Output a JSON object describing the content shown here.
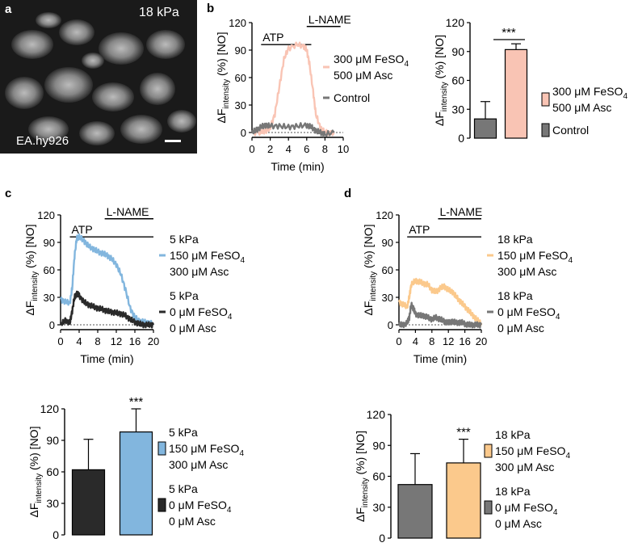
{
  "figure": {
    "panel_labels": [
      "a",
      "b",
      "c",
      "d"
    ],
    "micrograph": {
      "stiffness_label": "18 kPa",
      "cell_line_label": "EA.hy926",
      "description_icon": "scale-bar"
    }
  },
  "colors": {
    "control": "#777777",
    "salmon": "#f9c4b4",
    "blue": "#82b6de",
    "dark": "#2a2a2a",
    "orange": "#fbc98c"
  },
  "chart_data": [
    {
      "id": "b-trace",
      "type": "line",
      "ylabel_main": "ΔF",
      "ylabel_sub": "intensity",
      "ylabel_tail": "(%) [NO]",
      "xlabel": "Time (min)",
      "ylim": [
        0,
        120
      ],
      "yticks": [
        "0",
        "30",
        "60",
        "90",
        "120"
      ],
      "xlim": [
        0,
        10
      ],
      "xticks": [
        "0",
        "2",
        "4",
        "6",
        "8",
        "10"
      ],
      "annotations": {
        "atp": "ATP",
        "lname": "L-NAME"
      },
      "atp_range": [
        1.0,
        6.5
      ],
      "lname_range": [
        6.0,
        9.7
      ],
      "series": [
        {
          "name": "300 μM FeSO4 / 500 μM Asc",
          "color_key": "salmon",
          "x": [
            0,
            1,
            1.5,
            2,
            2.5,
            3,
            3.5,
            4,
            5,
            5.7,
            6,
            6.3,
            6.7,
            7,
            7.5,
            8,
            9
          ],
          "values": [
            0,
            0,
            2,
            5,
            20,
            50,
            80,
            92,
            96,
            94,
            90,
            75,
            45,
            20,
            5,
            0,
            0
          ]
        },
        {
          "name": "Control",
          "color_key": "control",
          "x": [
            0,
            0.5,
            1,
            1.5,
            2,
            3,
            4,
            5,
            6,
            6.5,
            7,
            7.5,
            8,
            9
          ],
          "values": [
            0,
            3,
            6,
            8,
            7,
            7,
            6,
            7,
            8,
            6,
            2,
            0,
            -2,
            0
          ]
        }
      ],
      "legend": [
        {
          "color_key": "salmon",
          "lines": [
            "300 μM FeSO",
            "4",
            "500 μM Asc"
          ]
        },
        {
          "color_key": "control",
          "lines": [
            "Control"
          ]
        }
      ]
    },
    {
      "id": "b-bar",
      "type": "bar",
      "ylabel_main": "ΔF",
      "ylabel_sub": "intensity",
      "ylabel_tail": "(%) [NO]",
      "ylim": [
        0,
        120
      ],
      "yticks": [
        "0",
        "30",
        "60",
        "90",
        "120"
      ],
      "categories": [
        "Control",
        "300 μM FeSO4 / 500 μM Asc"
      ],
      "values": [
        20,
        92
      ],
      "errors": [
        18,
        6
      ],
      "color_keys": [
        "control",
        "salmon"
      ],
      "significance": "***",
      "legend": [
        {
          "color_key": "salmon",
          "lines": [
            "300 μM FeSO",
            "4",
            "500 μM Asc"
          ]
        },
        {
          "color_key": "control",
          "lines": [
            "Control"
          ]
        }
      ]
    },
    {
      "id": "c-trace",
      "type": "line",
      "ylabel_main": "ΔF",
      "ylabel_sub": "intensity",
      "ylabel_tail": "(%) [NO]",
      "xlabel": "Time (min)",
      "ylim": [
        0,
        120
      ],
      "yticks": [
        "0",
        "30",
        "60",
        "90",
        "120"
      ],
      "xlim": [
        0,
        20
      ],
      "xticks": [
        "0",
        "4",
        "8",
        "12",
        "16",
        "20"
      ],
      "annotations": {
        "atp": "ATP",
        "lname": "L-NAME"
      },
      "atp_range": [
        2.0,
        20.0
      ],
      "lname_range": [
        9.5,
        20.0
      ],
      "series": [
        {
          "name": "5 kPa 150 μM FeSO4 300 μM Asc",
          "color_key": "blue",
          "x": [
            0,
            1,
            2,
            2.5,
            3,
            3.5,
            4,
            5,
            6,
            7,
            8,
            9,
            10,
            11,
            12,
            13,
            14,
            15,
            16,
            17,
            18,
            19,
            20
          ],
          "values": [
            28,
            25,
            24,
            40,
            75,
            95,
            96,
            92,
            86,
            83,
            80,
            78,
            76,
            72,
            66,
            55,
            38,
            18,
            8,
            4,
            3,
            2,
            1
          ]
        },
        {
          "name": "5 kPa 0 μM FeSO4 0 μM Asc",
          "color_key": "dark",
          "x": [
            0,
            1,
            2,
            2.5,
            3,
            3.5,
            4,
            5,
            6,
            7,
            8,
            9,
            10,
            11,
            12,
            13,
            14,
            15,
            16,
            17,
            18,
            19,
            20
          ],
          "values": [
            0,
            5,
            2,
            15,
            30,
            34,
            32,
            25,
            22,
            20,
            18,
            17,
            15,
            14,
            13,
            12,
            10,
            6,
            3,
            1,
            0,
            0,
            0
          ]
        }
      ],
      "legend": [
        {
          "color_key": "blue",
          "lines": [
            "5 kPa",
            "150 μM FeSO",
            "4",
            "300 μM Asc"
          ]
        },
        {
          "color_key": "dark",
          "lines": [
            "5 kPa",
            "0 μM FeSO",
            "4",
            "0 μM Asc"
          ]
        }
      ]
    },
    {
      "id": "c-bar",
      "type": "bar",
      "ylabel_main": "ΔF",
      "ylabel_sub": "intensity",
      "ylabel_tail": "(%) [NO]",
      "ylim": [
        0,
        120
      ],
      "yticks": [
        "0",
        "30",
        "60",
        "90",
        "120"
      ],
      "categories": [
        "5 kPa 0 μM FeSO4 0 μM Asc",
        "5 kPa 150 μM FeSO4 300 μM Asc"
      ],
      "values": [
        62,
        98
      ],
      "errors": [
        29,
        22
      ],
      "color_keys": [
        "dark",
        "blue"
      ],
      "significance": "***",
      "legend": [
        {
          "color_key": "blue",
          "lines": [
            "5 kPa",
            "150 μM FeSO",
            "4",
            "300 μM Asc"
          ]
        },
        {
          "color_key": "dark",
          "lines": [
            "5 kPa",
            "0 μM FeSO",
            "4",
            "0 μM Asc"
          ]
        }
      ]
    },
    {
      "id": "d-trace",
      "type": "line",
      "ylabel_main": "ΔF",
      "ylabel_sub": "intensity",
      "ylabel_tail": "(%) [NO]",
      "xlabel": "Time (min)",
      "ylim": [
        0,
        120
      ],
      "yticks": [
        "0",
        "30",
        "60",
        "90",
        "120"
      ],
      "xlim": [
        0,
        20
      ],
      "xticks": [
        "0",
        "4",
        "8",
        "12",
        "16",
        "20"
      ],
      "annotations": {
        "atp": "ATP",
        "lname": "L-NAME"
      },
      "atp_range": [
        2.0,
        20.0
      ],
      "lname_range": [
        9.5,
        20.0
      ],
      "series": [
        {
          "name": "18 kPa 150 μM FeSO4 300 μM Asc",
          "color_key": "orange",
          "x": [
            0,
            1,
            2,
            2.5,
            3,
            4,
            5,
            6,
            7,
            8,
            9,
            10,
            11,
            12,
            13,
            14,
            15,
            16,
            17,
            18,
            19,
            20
          ],
          "values": [
            25,
            22,
            20,
            30,
            44,
            48,
            47,
            45,
            44,
            38,
            36,
            40,
            42,
            38,
            36,
            30,
            25,
            20,
            15,
            10,
            5,
            2
          ]
        },
        {
          "name": "18 kPa 0 μM FeSO4 0 μM Asc",
          "color_key": "control",
          "x": [
            0,
            1,
            2,
            2.5,
            3,
            3.5,
            4,
            5,
            6,
            7,
            8,
            9,
            10,
            11,
            12,
            13,
            14,
            15,
            16,
            17,
            18,
            19,
            20
          ],
          "values": [
            0,
            0,
            2,
            8,
            22,
            18,
            12,
            10,
            10,
            8,
            6,
            8,
            6,
            4,
            2,
            4,
            2,
            3,
            1,
            0,
            0,
            0,
            0
          ]
        }
      ],
      "legend": [
        {
          "color_key": "orange",
          "lines": [
            "18 kPa",
            "150 μM FeSO",
            "4",
            "300 μM Asc"
          ]
        },
        {
          "color_key": "control",
          "lines": [
            "18 kPa",
            "0 μM FeSO",
            "4",
            "0 μM Asc"
          ]
        }
      ]
    },
    {
      "id": "d-bar",
      "type": "bar",
      "ylabel_main": "ΔF",
      "ylabel_sub": "intensity",
      "ylabel_tail": "(%) [NO]",
      "ylim": [
        0,
        120
      ],
      "yticks": [
        "0",
        "30",
        "60",
        "90",
        "120"
      ],
      "categories": [
        "18 kPa 0 μM FeSO4 0 μM Asc",
        "18 kPa 150 μM FeSO4 300 μM Asc"
      ],
      "values": [
        52,
        73
      ],
      "errors": [
        30,
        23
      ],
      "color_keys": [
        "control",
        "orange"
      ],
      "significance": "***",
      "legend": [
        {
          "color_key": "orange",
          "lines": [
            "18 kPa",
            "150 μM FeSO",
            "4",
            "300 μM Asc"
          ]
        },
        {
          "color_key": "control",
          "lines": [
            "18 kPa",
            "0 μM FeSO",
            "4",
            "0 μM Asc"
          ]
        }
      ]
    }
  ]
}
